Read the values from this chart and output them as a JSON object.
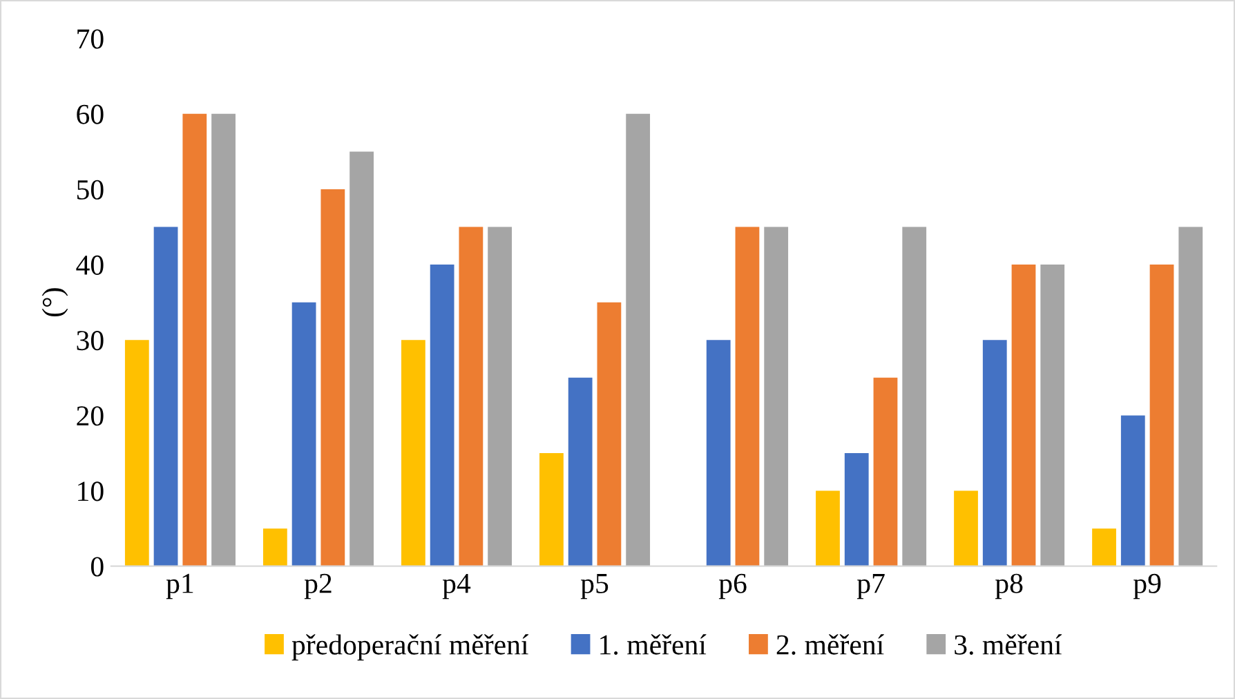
{
  "chart_data": {
    "type": "bar",
    "ylabel": "(°)",
    "categories": [
      "p1",
      "p2",
      "p4",
      "p5",
      "p6",
      "p7",
      "p8",
      "p9"
    ],
    "series": [
      {
        "name": "předoperační měření",
        "color": "#ffc000",
        "values": [
          30,
          5,
          30,
          15,
          null,
          10,
          10,
          5
        ]
      },
      {
        "name": "1. měření",
        "color": "#4472c4",
        "values": [
          45,
          35,
          40,
          25,
          30,
          15,
          30,
          20
        ]
      },
      {
        "name": "2. měření",
        "color": "#ed7d31",
        "values": [
          60,
          50,
          45,
          35,
          45,
          25,
          40,
          40
        ]
      },
      {
        "name": "3. měření",
        "color": "#a5a5a5",
        "values": [
          60,
          55,
          45,
          60,
          45,
          45,
          40,
          45
        ]
      }
    ],
    "ylim": [
      0,
      70
    ],
    "yticks": [
      0,
      10,
      20,
      30,
      40,
      50,
      60,
      70
    ],
    "grid": false,
    "legend": "bottom"
  }
}
